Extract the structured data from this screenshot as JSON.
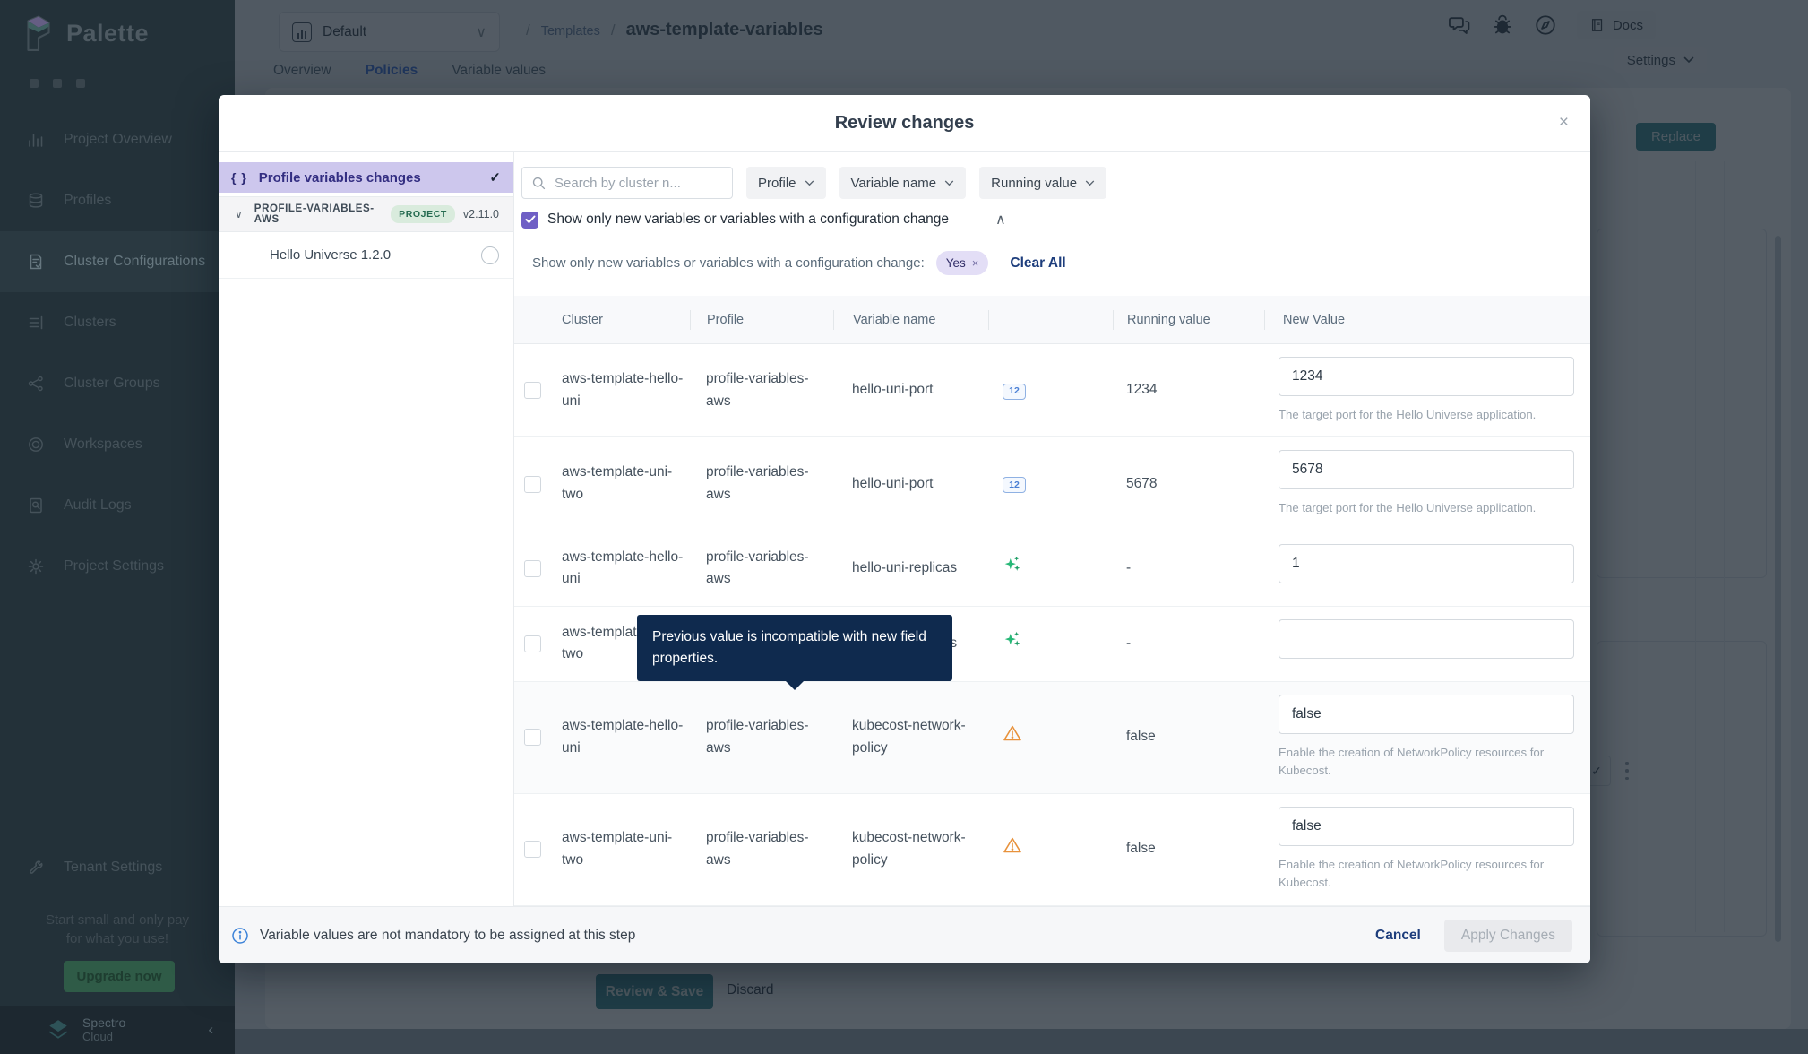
{
  "colors": {
    "accent_purple": "#6F5FC5",
    "selected_bg": "#CDC7ED",
    "chip_bg": "#E3DEF6",
    "link_navy": "#1D3D7C",
    "tab_active": "#3E6FD9",
    "teal": "#3E8E94",
    "warning_orange": "#E8923C",
    "success_green": "#27B877",
    "number_blue": "#4A7FD4",
    "tooltip_bg": "#0F2A4E",
    "badge_green_bg": "#D9EBDD",
    "badge_green_text": "#256B50"
  },
  "sidebar": {
    "logo_text": "Palette",
    "items": [
      {
        "label": "Project Overview",
        "icon": "chart-icon",
        "active": false
      },
      {
        "label": "Profiles",
        "icon": "layers-icon",
        "active": false
      },
      {
        "label": "Cluster Configurations",
        "icon": "doc-check-icon",
        "active": true
      },
      {
        "label": "Clusters",
        "icon": "list-icon",
        "active": false
      },
      {
        "label": "Cluster Groups",
        "icon": "nodes-icon",
        "active": false
      },
      {
        "label": "Workspaces",
        "icon": "rings-icon",
        "active": false
      },
      {
        "label": "Audit Logs",
        "icon": "audit-icon",
        "active": false
      },
      {
        "label": "Project Settings",
        "icon": "gear-icon",
        "active": false
      }
    ],
    "tenant_item": {
      "label": "Tenant Settings",
      "icon": "tools-icon"
    },
    "promo_line1": "Start small and only pay",
    "promo_line2": "for what you use!",
    "upgrade_label": "Upgrade now",
    "brand_line1": "Spectro",
    "brand_line2": "Cloud",
    "collapse_glyph": "‹"
  },
  "topbar": {
    "project_selector": "Default",
    "caret": "∨",
    "breadcrumb": {
      "sep": "/",
      "parent": "Templates",
      "current": "aws-template-variables"
    },
    "docs_label": "Docs",
    "settings_label": "Settings",
    "tabs": [
      {
        "label": "Overview",
        "active": false
      },
      {
        "label": "Policies",
        "active": true
      },
      {
        "label": "Variable values",
        "active": false
      }
    ],
    "replace_label": "Replace",
    "approve_glyph": "✓"
  },
  "background_actions": {
    "review_save": "Review & Save",
    "discard": "Discard"
  },
  "modal": {
    "title": "Review changes",
    "close_glyph": "×",
    "left_panel": {
      "selected_item": "Profile variables changes",
      "braces_glyph": "{ }",
      "check_glyph": "✓",
      "chevron_glyph": "∨",
      "profile_name": "PROFILE-VARIABLES-AWS",
      "profile_badge": "PROJECT",
      "profile_version": "v2.11.0",
      "sub_item": "Hello Universe 1.2.0"
    },
    "filters": {
      "search_placeholder": "Search by cluster n...",
      "dropdowns": [
        "Profile",
        "Variable name",
        "Running value"
      ],
      "checkbox_label": "Show only new variables or variables with a configuration change",
      "collapse_glyph": "∧",
      "applied_label": "Show only new variables or variables with a configuration change:",
      "chip_value": "Yes",
      "chip_remove_glyph": "×",
      "clear_all": "Clear All"
    },
    "table": {
      "headers": [
        "Cluster",
        "Profile",
        "Variable name",
        "",
        "Running value",
        "New Value"
      ],
      "number_icon_label": "12",
      "rows": [
        {
          "cluster": "aws-template-hello-uni",
          "profile": "profile-variables-aws",
          "variable": "hello-uni-port",
          "icon": "number-type-icon",
          "running": "1234",
          "new_value": "1234",
          "helper": "The target port for the Hello Universe application.",
          "highlighted": false
        },
        {
          "cluster": "aws-template-uni-two",
          "profile": "profile-variables-aws",
          "variable": "hello-uni-port",
          "icon": "number-type-icon",
          "running": "5678",
          "new_value": "5678",
          "helper": "The target port for the Hello Universe application.",
          "highlighted": false
        },
        {
          "cluster": "aws-template-hello-uni",
          "profile": "profile-variables-aws",
          "variable": "hello-uni-replicas",
          "icon": "sparkle-new-icon",
          "running": "-",
          "new_value": "1",
          "helper": "",
          "highlighted": false
        },
        {
          "cluster": "aws-template-uni-two",
          "profile": "profile-variables-aws",
          "variable": "hello-uni-replicas",
          "icon": "sparkle-new-icon",
          "running": "-",
          "new_value": "",
          "helper": "",
          "highlighted": false
        },
        {
          "cluster": "aws-template-hello-uni",
          "profile": "profile-variables-aws",
          "variable": "kubecost-network-policy",
          "icon": "warning-icon",
          "running": "false",
          "new_value": "false",
          "helper": "Enable the creation of NetworkPolicy resources for Kubecost.",
          "highlighted": true
        },
        {
          "cluster": "aws-template-uni-two",
          "profile": "profile-variables-aws",
          "variable": "kubecost-network-policy",
          "icon": "warning-icon",
          "running": "false",
          "new_value": "false",
          "helper": "Enable the creation of NetworkPolicy resources for Kubecost.",
          "highlighted": false
        }
      ]
    },
    "tooltip": "Previous value is incompatible with new field properties.",
    "footer": {
      "info_text": "Variable values are not mandatory to be assigned at this step",
      "cancel": "Cancel",
      "apply": "Apply Changes"
    }
  }
}
